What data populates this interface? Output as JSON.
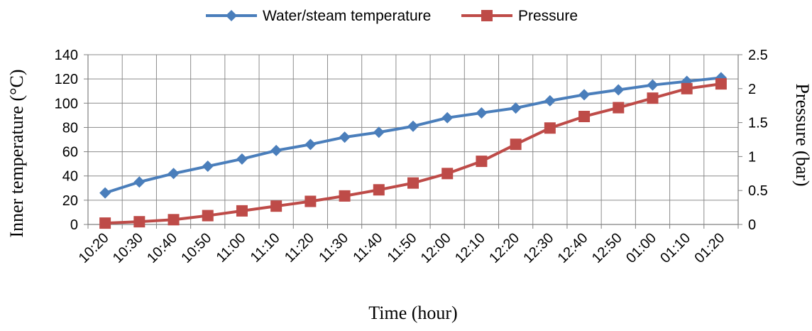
{
  "chart_data": {
    "type": "line",
    "categories": [
      "10:20",
      "10:30",
      "10:40",
      "10:50",
      "11:00",
      "11:10",
      "11:20",
      "11:30",
      "11:40",
      "11:50",
      "12:00",
      "12:10",
      "12:20",
      "12:30",
      "12:40",
      "12:50",
      "01:00",
      "01:10",
      "01:20"
    ],
    "series": [
      {
        "name": "Water/steam temperature",
        "axis": "left",
        "color": "#4A7EBB",
        "marker": "diamond",
        "values": [
          26,
          35,
          42,
          48,
          54,
          61,
          66,
          72,
          76,
          81,
          88,
          92,
          96,
          102,
          107,
          111,
          115,
          118,
          121
        ]
      },
      {
        "name": "Pressure",
        "axis": "right",
        "color": "#BE4B48",
        "marker": "square",
        "values": [
          0.02,
          0.04,
          0.07,
          0.13,
          0.2,
          0.27,
          0.34,
          0.42,
          0.51,
          0.61,
          0.75,
          0.93,
          1.18,
          1.42,
          1.59,
          1.72,
          1.86,
          2.0,
          2.07
        ]
      }
    ],
    "xlabel": "Time (hour)",
    "ylabel_left": "Inner temperature (°C)",
    "ylabel_right": "Pressure (bar)",
    "ylim_left": [
      0,
      140
    ],
    "yticks_left": [
      "0",
      "20",
      "40",
      "60",
      "80",
      "100",
      "120",
      "140"
    ],
    "ylim_right": [
      0,
      2.5
    ],
    "yticks_right": [
      "0",
      "0.5",
      "1",
      "1.5",
      "2",
      "2.5"
    ],
    "grid": true,
    "legend_position": "top-center"
  }
}
